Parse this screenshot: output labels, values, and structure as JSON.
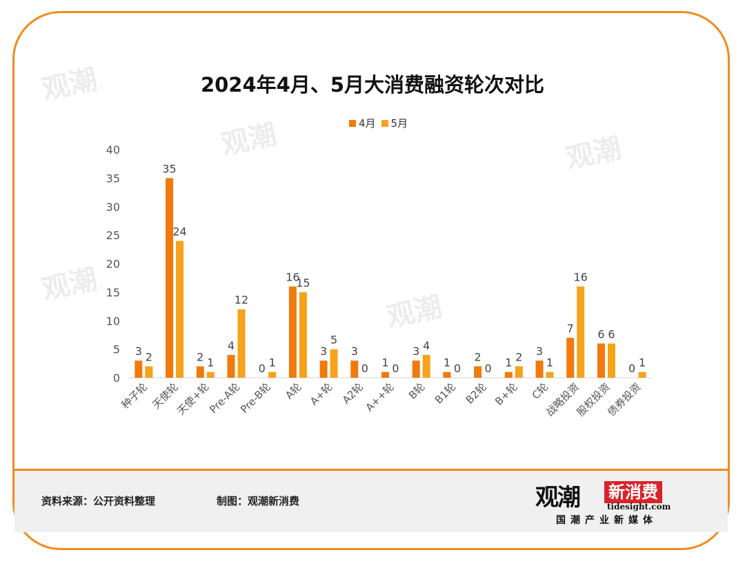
{
  "chart_data": {
    "type": "bar",
    "title": "2024年4月、5月大消费融资轮次对比",
    "categories": [
      "种子轮",
      "天使轮",
      "天使+轮",
      "Pre-A轮",
      "Pre-B轮",
      "A轮",
      "A+轮",
      "A2轮",
      "A++轮",
      "B轮",
      "B1轮",
      "B2轮",
      "B+轮",
      "C轮",
      "战略投资",
      "股权投资",
      "债券投资"
    ],
    "series": [
      {
        "name": "4月",
        "color": "#f07a0c",
        "values": [
          3,
          35,
          2,
          4,
          0,
          16,
          3,
          3,
          1,
          3,
          1,
          2,
          1,
          3,
          7,
          6,
          0
        ]
      },
      {
        "name": "5月",
        "color": "#f6a21a",
        "values": [
          2,
          24,
          1,
          12,
          1,
          15,
          5,
          0,
          0,
          4,
          0,
          0,
          2,
          1,
          16,
          6,
          1
        ]
      }
    ],
    "ylim": [
      0,
      40
    ],
    "yticks": [
      0,
      5,
      10,
      15,
      20,
      25,
      30,
      35,
      40
    ],
    "legend": "top",
    "grid": false
  },
  "footer": {
    "source": "资料来源：公开资料整理",
    "maker": "制图：观潮新消费"
  },
  "logo": {
    "main": "观潮",
    "red": "新消费",
    "url": "tidesight.com",
    "sub": "国潮产业新媒体"
  },
  "colors": {
    "accent": "#f28a1e",
    "april": "#f07a0c",
    "may": "#f6a21a"
  }
}
